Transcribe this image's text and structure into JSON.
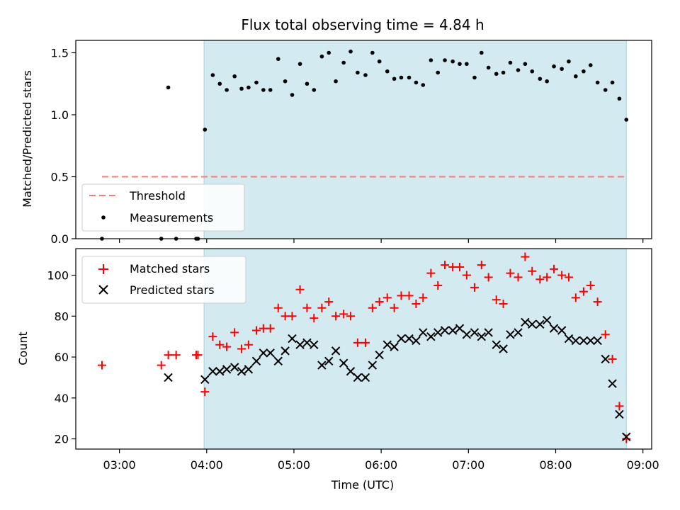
{
  "chart_data": {
    "title": "Flux total observing time = 4.84 h",
    "xlabel": "Time (UTC)",
    "x_ticks": [
      "03:00",
      "04:00",
      "05:00",
      "06:00",
      "07:00",
      "08:00",
      "09:00"
    ],
    "xlim_hours": [
      2.5,
      9.1
    ],
    "observing_window_hours": [
      3.97,
      8.81
    ],
    "colors": {
      "window": "#d3eaf1",
      "window_edge": "#a8d0dc",
      "threshold": "#f08080",
      "matched": "#ff0000",
      "predicted": "#000000",
      "measurement": "#000000"
    },
    "top": {
      "type": "scatter",
      "ylabel": "Matched/Predicted stars",
      "ylim": [
        0,
        1.6
      ],
      "y_ticks": [
        0.0,
        0.5,
        1.0,
        1.5
      ],
      "y_tick_labels": [
        "0.0",
        "0.5",
        "1.0",
        "1.5"
      ],
      "threshold": {
        "name": "Threshold",
        "value": 0.5,
        "x_range": [
          2.8,
          8.81
        ]
      },
      "legend": [
        "Threshold",
        "Measurements"
      ],
      "legend_position": "lower-left",
      "measurements": {
        "name": "Measurements",
        "x": [
          2.8,
          3.48,
          3.56,
          3.65,
          3.88,
          3.9,
          3.98,
          4.07,
          4.15,
          4.23,
          4.32,
          4.4,
          4.48,
          4.57,
          4.65,
          4.73,
          4.82,
          4.9,
          4.98,
          5.07,
          5.15,
          5.23,
          5.32,
          5.4,
          5.48,
          5.57,
          5.65,
          5.73,
          5.82,
          5.9,
          5.98,
          6.07,
          6.15,
          6.23,
          6.32,
          6.4,
          6.48,
          6.57,
          6.65,
          6.73,
          6.82,
          6.9,
          6.98,
          7.07,
          7.15,
          7.23,
          7.32,
          7.4,
          7.48,
          7.57,
          7.65,
          7.73,
          7.82,
          7.9,
          7.98,
          8.07,
          8.15,
          8.23,
          8.32,
          8.4,
          8.48,
          8.57,
          8.65,
          8.73,
          8.81
        ],
        "y": [
          0.0,
          0.0,
          1.22,
          0.0,
          0.0,
          0.0,
          0.88,
          1.32,
          1.25,
          1.2,
          1.31,
          1.21,
          1.22,
          1.26,
          1.2,
          1.2,
          1.45,
          1.27,
          1.16,
          1.41,
          1.25,
          1.2,
          1.47,
          1.5,
          1.27,
          1.42,
          1.51,
          1.34,
          1.32,
          1.5,
          1.43,
          1.35,
          1.29,
          1.3,
          1.3,
          1.26,
          1.24,
          1.44,
          1.34,
          1.44,
          1.43,
          1.41,
          1.41,
          1.3,
          1.5,
          1.38,
          1.33,
          1.34,
          1.42,
          1.36,
          1.41,
          1.35,
          1.29,
          1.27,
          1.39,
          1.37,
          1.43,
          1.31,
          1.35,
          1.4,
          1.26,
          1.2,
          1.26,
          1.13,
          0.96
        ]
      }
    },
    "bottom": {
      "type": "scatter",
      "ylabel": "Count",
      "ylim": [
        15,
        113
      ],
      "y_ticks": [
        20,
        40,
        60,
        80,
        100
      ],
      "y_tick_labels": [
        "20",
        "40",
        "60",
        "80",
        "100"
      ],
      "legend": [
        "Matched stars",
        "Predicted stars"
      ],
      "legend_position": "upper-left",
      "matched": {
        "name": "Matched stars",
        "x": [
          2.8,
          3.48,
          3.56,
          3.65,
          3.88,
          3.9,
          3.98,
          4.07,
          4.15,
          4.23,
          4.32,
          4.4,
          4.48,
          4.57,
          4.65,
          4.73,
          4.82,
          4.9,
          4.98,
          5.07,
          5.15,
          5.23,
          5.32,
          5.4,
          5.48,
          5.57,
          5.65,
          5.73,
          5.82,
          5.9,
          5.98,
          6.07,
          6.15,
          6.23,
          6.32,
          6.4,
          6.48,
          6.57,
          6.65,
          6.73,
          6.82,
          6.9,
          6.98,
          7.07,
          7.15,
          7.23,
          7.32,
          7.4,
          7.48,
          7.57,
          7.65,
          7.73,
          7.82,
          7.9,
          7.98,
          8.07,
          8.15,
          8.23,
          8.32,
          8.4,
          8.48,
          8.57,
          8.65,
          8.73,
          8.81
        ],
        "y": [
          56,
          56,
          61,
          61,
          61,
          61,
          43,
          70,
          66,
          65,
          72,
          64,
          66,
          73,
          74,
          74,
          84,
          80,
          80,
          93,
          84,
          79,
          84,
          87,
          80,
          81,
          80,
          67,
          67,
          84,
          87,
          89,
          84,
          90,
          90,
          86,
          89,
          101,
          95,
          105,
          104,
          104,
          100,
          94,
          105,
          99,
          88,
          86,
          101,
          99,
          109,
          102,
          98,
          99,
          103,
          100,
          99,
          89,
          92,
          95,
          87,
          71,
          59,
          36,
          20
        ]
      },
      "predicted": {
        "name": "Predicted stars",
        "x": [
          3.56,
          3.98,
          4.07,
          4.15,
          4.23,
          4.32,
          4.4,
          4.48,
          4.57,
          4.65,
          4.73,
          4.82,
          4.9,
          4.98,
          5.07,
          5.15,
          5.23,
          5.32,
          5.4,
          5.48,
          5.57,
          5.65,
          5.73,
          5.82,
          5.9,
          5.98,
          6.07,
          6.15,
          6.23,
          6.32,
          6.4,
          6.48,
          6.57,
          6.65,
          6.73,
          6.82,
          6.9,
          6.98,
          7.07,
          7.15,
          7.23,
          7.32,
          7.4,
          7.48,
          7.57,
          7.65,
          7.73,
          7.82,
          7.9,
          7.98,
          8.07,
          8.15,
          8.23,
          8.32,
          8.4,
          8.48,
          8.57,
          8.65,
          8.73,
          8.81
        ],
        "y": [
          50,
          49,
          53,
          53,
          54,
          55,
          53,
          54,
          58,
          62,
          62,
          58,
          63,
          69,
          66,
          67,
          66,
          56,
          58,
          63,
          57,
          53,
          50,
          50,
          56,
          61,
          66,
          65,
          69,
          69,
          68,
          72,
          70,
          72,
          73,
          73,
          74,
          71,
          72,
          70,
          72,
          66,
          64,
          71,
          72,
          77,
          76,
          76,
          78,
          74,
          73,
          69,
          68,
          68,
          68,
          68,
          59,
          47,
          32,
          21
        ]
      }
    }
  }
}
